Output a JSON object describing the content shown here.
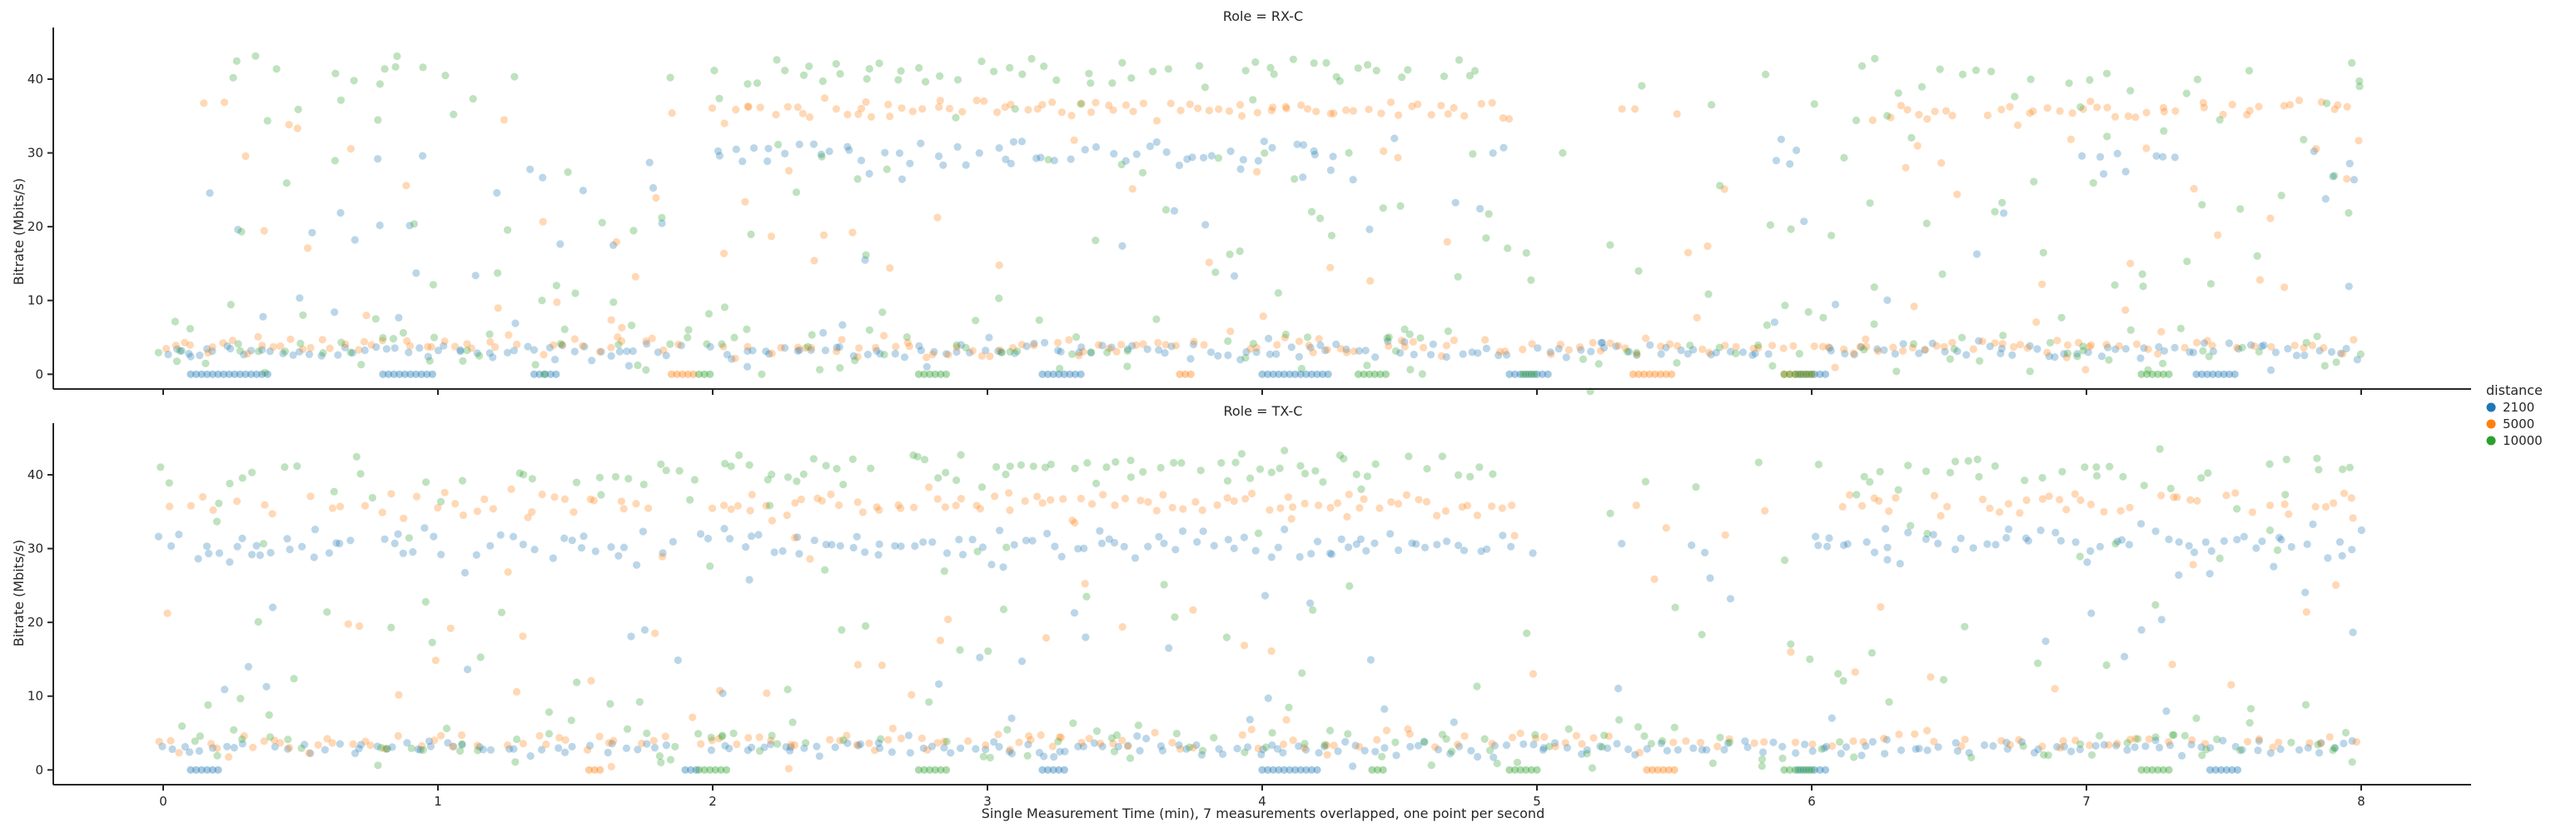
{
  "chart_data": {
    "type": "scatter",
    "xlabel": "Single Measurement Time (min), 7 measurements overlapped, one point per second",
    "xlim": [
      -0.4,
      8.4
    ],
    "x_ticks": [
      "0",
      "1",
      "2",
      "3",
      "4",
      "5",
      "6",
      "7",
      "8"
    ],
    "legend": {
      "title": "distance",
      "placement": "right",
      "entries": [
        {
          "label": "2100",
          "color": "#1f77b4"
        },
        {
          "label": "5000",
          "color": "#ff7f0e"
        },
        {
          "label": "10000",
          "color": "#2ca02c"
        }
      ]
    },
    "point_alpha": 0.3,
    "panels": [
      {
        "title": "Role = RX-C",
        "ylabel": "Bitrate (Mbits/s)",
        "ylim": [
          -2,
          47
        ],
        "y_ticks": [
          "0",
          "10",
          "20",
          "30",
          "40"
        ],
        "series": [
          {
            "name": "2100",
            "color": "#1f77b4",
            "bands": [
              {
                "x": [
                  0.0,
                  1.9
                ],
                "y": 3.2,
                "spread": 0.5,
                "density": 1.0
              },
              {
                "x": [
                  2.0,
                  4.9
                ],
                "y": 3.2,
                "spread": 0.5,
                "density": 1.0
              },
              {
                "x": [
                  5.0,
                  5.85
                ],
                "y": 3.2,
                "spread": 0.5,
                "density": 1.0
              },
              {
                "x": [
                  6.05,
                  8.0
                ],
                "y": 3.2,
                "spread": 0.5,
                "density": 1.0
              },
              {
                "x": [
                  2.0,
                  4.3
                ],
                "y": 29.8,
                "spread": 1.0,
                "density": 0.9
              },
              {
                "x": [
                  4.85,
                  4.95
                ],
                "y": 29.8,
                "spread": 1.0,
                "density": 0.9
              },
              {
                "x": [
                  5.8,
                  6.0
                ],
                "y": 29.0,
                "spread": 1.0,
                "density": 0.6
              },
              {
                "x": [
                  7.0,
                  7.4
                ],
                "y": 29.0,
                "spread": 1.0,
                "density": 0.7
              },
              {
                "x": [
                  7.8,
                  8.0
                ],
                "y": 29.0,
                "spread": 1.0,
                "density": 0.7
              },
              {
                "x": [
                  0.0,
                  1.9
                ],
                "y": [
                  0,
                  32
                ],
                "spread": 0,
                "density": 0.55
              },
              {
                "x": [
                  2.0,
                  8.0
                ],
                "y": [
                  0,
                  32
                ],
                "spread": 0,
                "density": 0.25
              }
            ],
            "zero_runs": [
              [
                0.1,
                0.4
              ],
              [
                0.8,
                1.0
              ],
              [
                1.35,
                1.45
              ],
              [
                3.2,
                3.35
              ],
              [
                4.0,
                4.25
              ],
              [
                4.9,
                5.05
              ],
              [
                5.95,
                6.05
              ],
              [
                7.4,
                7.55
              ]
            ]
          },
          {
            "name": "5000",
            "color": "#ff7f0e",
            "bands": [
              {
                "x": [
                  0.0,
                  1.9
                ],
                "y": 3.8,
                "spread": 0.6,
                "density": 0.9
              },
              {
                "x": [
                  2.0,
                  8.0
                ],
                "y": 3.8,
                "spread": 0.6,
                "density": 0.8
              },
              {
                "x": [
                  2.0,
                  4.9
                ],
                "y": 35.8,
                "spread": 0.8,
                "density": 1.0
              },
              {
                "x": [
                  5.2,
                  5.5
                ],
                "y": 35.8,
                "spread": 0.8,
                "density": 0.6
              },
              {
                "x": [
                  6.2,
                  8.0
                ],
                "y": 35.8,
                "spread": 0.8,
                "density": 0.9
              },
              {
                "x": [
                  0.0,
                  1.9
                ],
                "y": [
                  4,
                  38
                ],
                "spread": 0,
                "density": 0.45
              },
              {
                "x": [
                  2.0,
                  8.0
                ],
                "y": [
                  0,
                  37
                ],
                "spread": 0,
                "density": 0.3
              }
            ],
            "zero_runs": [
              [
                1.85,
                1.95
              ],
              [
                3.7,
                3.75
              ],
              [
                5.35,
                5.5
              ],
              [
                5.9,
                6.0
              ]
            ]
          },
          {
            "name": "10000",
            "color": "#2ca02c",
            "bands": [
              {
                "x": [
                  0.0,
                  8.0
                ],
                "y": 3.5,
                "spread": 1.8,
                "density": 0.5
              },
              {
                "x": [
                  2.0,
                  4.8
                ],
                "y": 41.0,
                "spread": 1.0,
                "density": 0.6
              },
              {
                "x": [
                  0.2,
                  1.0
                ],
                "y": 40.5,
                "spread": 1.2,
                "density": 0.45
              },
              {
                "x": [
                  6.2,
                  8.0
                ],
                "y": 40.5,
                "spread": 1.2,
                "density": 0.35
              },
              {
                "x": [
                  0.0,
                  8.0
                ],
                "y": [
                  0,
                  42
                ],
                "spread": 0,
                "density": 0.65
              }
            ],
            "zero_runs": [
              [
                1.95,
                2.0
              ],
              [
                2.75,
                2.85
              ],
              [
                4.35,
                4.45
              ],
              [
                4.95,
                5.0
              ],
              [
                5.9,
                6.0
              ],
              [
                7.2,
                7.3
              ]
            ]
          }
        ]
      },
      {
        "title": "Role = TX-C",
        "ylabel": "Bitrate (Mbits/s)",
        "ylim": [
          -2,
          47
        ],
        "y_ticks": [
          "0",
          "10",
          "20",
          "30",
          "40"
        ],
        "series": [
          {
            "name": "2100",
            "color": "#1f77b4",
            "bands": [
              {
                "x": [
                  0.0,
                  1.9
                ],
                "y": 3.0,
                "spread": 0.5,
                "density": 0.9
              },
              {
                "x": [
                  2.0,
                  8.0
                ],
                "y": 3.0,
                "spread": 0.5,
                "density": 1.0
              },
              {
                "x": [
                  0.0,
                  1.9
                ],
                "y": 30.5,
                "spread": 1.2,
                "density": 0.9
              },
              {
                "x": [
                  2.0,
                  4.9
                ],
                "y": 30.5,
                "spread": 1.0,
                "density": 1.0
              },
              {
                "x": [
                  6.0,
                  8.0
                ],
                "y": 30.5,
                "spread": 1.0,
                "density": 1.0
              },
              {
                "x": [
                  0.0,
                  8.0
                ],
                "y": [
                  0,
                  33
                ],
                "spread": 0,
                "density": 0.3
              }
            ],
            "zero_runs": [
              [
                0.1,
                0.2
              ],
              [
                1.9,
                1.95
              ],
              [
                3.2,
                3.3
              ],
              [
                4.0,
                4.2
              ],
              [
                5.95,
                6.05
              ],
              [
                7.45,
                7.55
              ]
            ]
          },
          {
            "name": "5000",
            "color": "#ff7f0e",
            "bands": [
              {
                "x": [
                  0.0,
                  1.9
                ],
                "y": 35.8,
                "spread": 1.2,
                "density": 0.6
              },
              {
                "x": [
                  2.0,
                  4.9
                ],
                "y": 36.2,
                "spread": 1.0,
                "density": 1.0
              },
              {
                "x": [
                  6.1,
                  8.0
                ],
                "y": 36.2,
                "spread": 1.0,
                "density": 0.8
              },
              {
                "x": [
                  0.0,
                  8.0
                ],
                "y": 3.8,
                "spread": 0.7,
                "density": 0.7
              },
              {
                "x": [
                  0.0,
                  8.0
                ],
                "y": [
                  0,
                  38
                ],
                "spread": 0,
                "density": 0.3
              }
            ],
            "zero_runs": [
              [
                1.55,
                1.6
              ],
              [
                5.4,
                5.5
              ]
            ]
          },
          {
            "name": "10000",
            "color": "#2ca02c",
            "bands": [
              {
                "x": [
                  2.0,
                  4.9
                ],
                "y": 40.8,
                "spread": 1.0,
                "density": 0.8
              },
              {
                "x": [
                  0.0,
                  1.9
                ],
                "y": 39.5,
                "spread": 1.5,
                "density": 0.4
              },
              {
                "x": [
                  6.2,
                  8.0
                ],
                "y": 40.5,
                "spread": 1.2,
                "density": 0.45
              },
              {
                "x": [
                  0.0,
                  8.0
                ],
                "y": 4.0,
                "spread": 1.2,
                "density": 0.45
              },
              {
                "x": [
                  0.0,
                  8.0
                ],
                "y": [
                  0,
                  43
                ],
                "spread": 0,
                "density": 0.55
              }
            ],
            "zero_runs": [
              [
                1.95,
                2.05
              ],
              [
                2.75,
                2.85
              ],
              [
                4.4,
                4.45
              ],
              [
                4.9,
                5.0
              ],
              [
                5.9,
                6.0
              ],
              [
                7.2,
                7.3
              ]
            ]
          }
        ]
      }
    ]
  }
}
